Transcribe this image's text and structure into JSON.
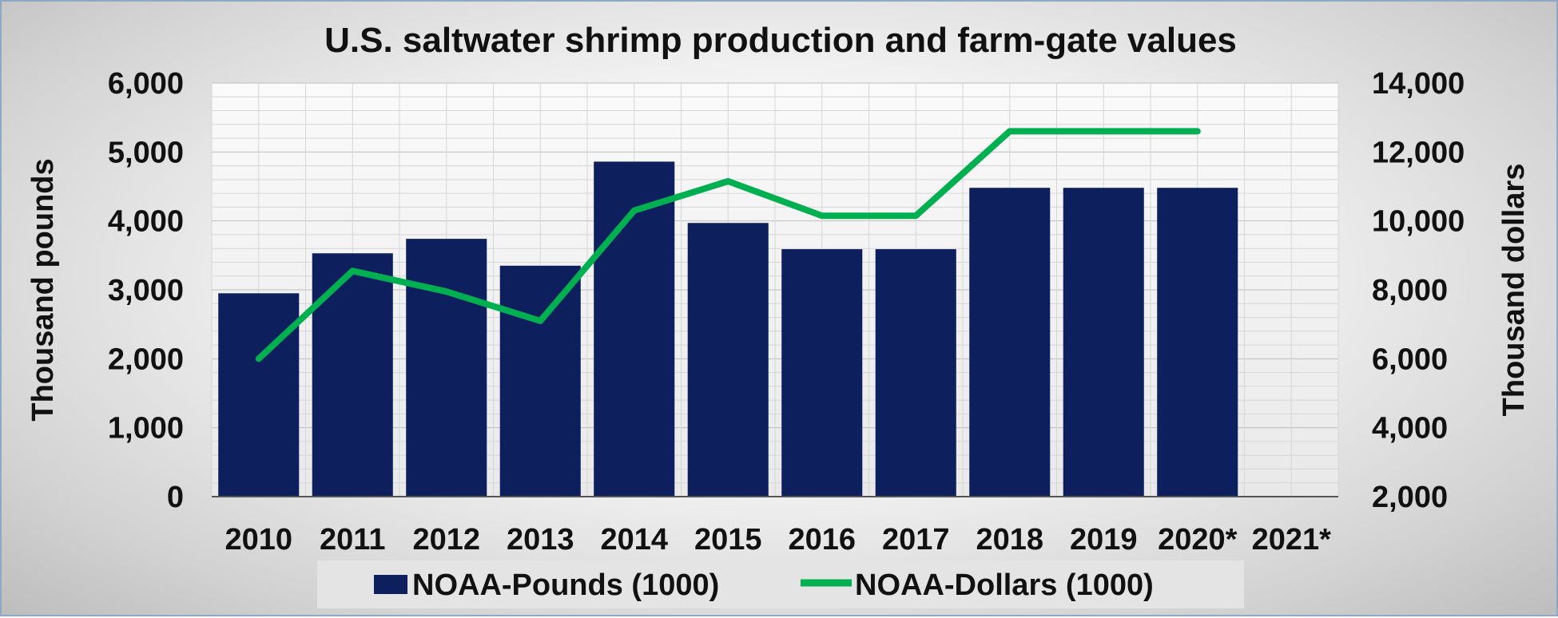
{
  "chart_data": {
    "type": "bar",
    "title": "U.S. saltwater shrimp production and farm-gate values",
    "categories": [
      "2010",
      "2011",
      "2012",
      "2013",
      "2014",
      "2015",
      "2016",
      "2017",
      "2018",
      "2019",
      "2020*",
      "2021*"
    ],
    "series": [
      {
        "name": "NOAA-Pounds (1000)",
        "type": "bar",
        "axis": "left",
        "color": "#0d1f5c",
        "values": [
          2950,
          3530,
          3740,
          3350,
          4860,
          3970,
          3590,
          3590,
          4480,
          4480,
          4480,
          null
        ]
      },
      {
        "name": "NOAA-Dollars (1000)",
        "type": "line",
        "axis": "right",
        "color": "#00b050",
        "values": [
          6000,
          8550,
          7950,
          7100,
          10300,
          11150,
          10150,
          10150,
          12600,
          12600,
          12600,
          null
        ]
      }
    ],
    "y_left": {
      "label": "Thousand pounds",
      "range": [
        0,
        6000
      ],
      "ticks": [
        "0",
        "1,000",
        "2,000",
        "3,000",
        "4,000",
        "5,000",
        "6,000"
      ]
    },
    "y_right": {
      "label": "Thousand dollars",
      "range": [
        2000,
        14000
      ],
      "ticks": [
        "2,000",
        "4,000",
        "6,000",
        "8,000",
        "10,000",
        "12,000",
        "14,000"
      ]
    },
    "grid": true,
    "legend_position": "bottom"
  }
}
